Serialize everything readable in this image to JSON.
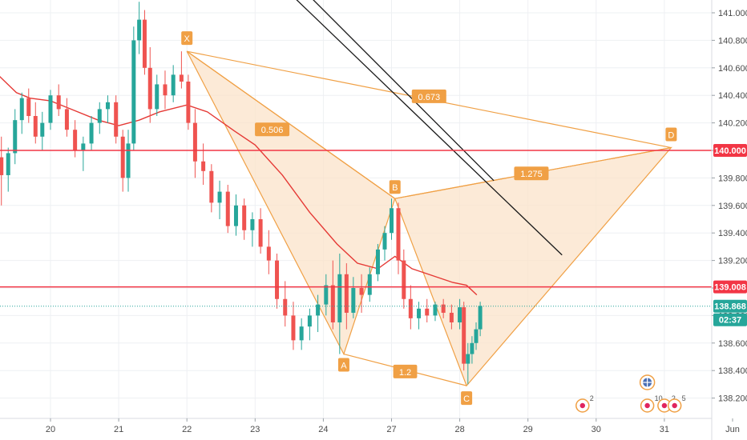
{
  "chart_data": {
    "type": "candlestick",
    "title": "",
    "x_ticks": [
      "20",
      "21",
      "22",
      "23",
      "24",
      "27",
      "28",
      "29",
      "30",
      "31",
      "Jun"
    ],
    "y_ticks": [
      "141.000",
      "140.800",
      "140.600",
      "140.400",
      "140.200",
      "140.000",
      "139.800",
      "139.600",
      "139.400",
      "139.200",
      "139.000",
      "138.800",
      "138.600",
      "138.400",
      "138.200"
    ],
    "ylim": [
      138.08,
      141.08
    ],
    "grid": true,
    "price_lines": [
      {
        "label": "140.000",
        "value": 140.0,
        "color": "#f23645"
      },
      {
        "label": "139.008",
        "value": 139.008,
        "color": "#f23645"
      }
    ],
    "last_price": {
      "label": "138.868",
      "value": 138.868,
      "color": "#26a69a"
    },
    "countdown": "02:37",
    "pattern": {
      "points": [
        {
          "label": "X",
          "session": 2.0,
          "value": 140.72
        },
        {
          "label": "A",
          "session": 4.3,
          "value": 138.52
        },
        {
          "label": "B",
          "session": 5.05,
          "value": 139.65
        },
        {
          "label": "C",
          "session": 6.1,
          "value": 138.29
        },
        {
          "label": "D",
          "session": 9.1,
          "value": 140.02
        }
      ],
      "ratios": [
        {
          "label": "0.506",
          "session": 3.25,
          "value": 140.15
        },
        {
          "label": "0.673",
          "session": 5.55,
          "value": 140.39
        },
        {
          "label": "1.275",
          "session": 7.05,
          "value": 139.83
        },
        {
          "label": "1.2",
          "session": 5.2,
          "value": 138.39
        }
      ],
      "fill_color": "#fbe3c9",
      "line_color": "#f0a045"
    },
    "trend_lines": [
      {
        "from": {
          "session": 3.45,
          "value": 141.17
        },
        "to": {
          "session": 7.5,
          "value": 139.24
        },
        "color": "#1a1a1a"
      },
      {
        "from": {
          "session": 3.7,
          "value": 141.17
        },
        "to": {
          "session": 6.5,
          "value": 139.78
        },
        "color": "#1a1a1a"
      }
    ],
    "moving_average": {
      "color": "#e53935",
      "points": [
        [
          -0.75,
          140.54
        ],
        [
          -0.5,
          140.42
        ],
        [
          -0.3,
          140.38
        ],
        [
          0.0,
          140.36
        ],
        [
          0.3,
          140.3
        ],
        [
          0.7,
          140.22
        ],
        [
          1.0,
          140.18
        ],
        [
          1.3,
          140.22
        ],
        [
          1.6,
          140.28
        ],
        [
          2.0,
          140.33
        ],
        [
          2.3,
          140.28
        ],
        [
          2.7,
          140.14
        ],
        [
          3.0,
          140.04
        ],
        [
          3.4,
          139.82
        ],
        [
          3.8,
          139.55
        ],
        [
          4.2,
          139.32
        ],
        [
          4.5,
          139.18
        ],
        [
          4.8,
          139.14
        ],
        [
          5.05,
          139.23
        ],
        [
          5.3,
          139.14
        ],
        [
          5.6,
          139.09
        ],
        [
          5.9,
          139.04
        ],
        [
          6.1,
          139.02
        ],
        [
          6.25,
          138.95
        ]
      ]
    },
    "series": [
      {
        "name": "",
        "ohlc": [
          [
            -0.72,
            139.95,
            140.1,
            139.6,
            139.82
          ],
          [
            -0.62,
            139.82,
            140.02,
            139.7,
            139.98
          ],
          [
            -0.52,
            139.98,
            140.3,
            139.9,
            140.22
          ],
          [
            -0.42,
            140.22,
            140.42,
            140.12,
            140.38
          ],
          [
            -0.32,
            140.38,
            140.45,
            140.2,
            140.25
          ],
          [
            -0.22,
            140.25,
            140.35,
            140.05,
            140.1
          ],
          [
            -0.12,
            140.1,
            140.28,
            140.0,
            140.2
          ],
          [
            0.0,
            140.2,
            140.44,
            140.15,
            140.4
          ],
          [
            0.12,
            140.4,
            140.48,
            140.25,
            140.3
          ],
          [
            0.24,
            140.3,
            140.38,
            140.1,
            140.15
          ],
          [
            0.36,
            140.15,
            140.22,
            139.95,
            140.0
          ],
          [
            0.48,
            140.0,
            140.1,
            139.85,
            140.05
          ],
          [
            0.6,
            140.05,
            140.25,
            140.0,
            140.2
          ],
          [
            0.72,
            140.2,
            140.35,
            140.12,
            140.3
          ],
          [
            0.84,
            140.3,
            140.4,
            140.2,
            140.35
          ],
          [
            0.96,
            140.35,
            140.4,
            140.05,
            140.1
          ],
          [
            1.06,
            140.1,
            140.15,
            139.7,
            139.8
          ],
          [
            1.14,
            139.8,
            140.15,
            139.7,
            140.05
          ],
          [
            1.22,
            140.05,
            140.9,
            140.0,
            140.8
          ],
          [
            1.3,
            140.8,
            141.08,
            140.7,
            140.95
          ],
          [
            1.38,
            140.95,
            141.02,
            140.55,
            140.6
          ],
          [
            1.46,
            140.6,
            140.75,
            140.2,
            140.3
          ],
          [
            1.56,
            140.3,
            140.55,
            140.25,
            140.48
          ],
          [
            1.68,
            140.48,
            140.58,
            140.3,
            140.4
          ],
          [
            1.8,
            140.4,
            140.62,
            140.35,
            140.55
          ],
          [
            1.92,
            140.55,
            140.72,
            140.45,
            140.5
          ],
          [
            2.02,
            140.5,
            140.55,
            140.15,
            140.2
          ],
          [
            2.12,
            140.2,
            140.3,
            139.8,
            139.92
          ],
          [
            2.24,
            139.92,
            140.05,
            139.75,
            139.85
          ],
          [
            2.36,
            139.85,
            139.9,
            139.55,
            139.62
          ],
          [
            2.48,
            139.62,
            139.78,
            139.5,
            139.7
          ],
          [
            2.6,
            139.7,
            139.75,
            139.4,
            139.45
          ],
          [
            2.72,
            139.45,
            139.68,
            139.38,
            139.6
          ],
          [
            2.84,
            139.6,
            139.65,
            139.35,
            139.42
          ],
          [
            2.96,
            139.42,
            139.55,
            139.3,
            139.5
          ],
          [
            3.08,
            139.5,
            139.58,
            139.25,
            139.3
          ],
          [
            3.2,
            139.3,
            139.42,
            139.1,
            139.2
          ],
          [
            3.32,
            139.2,
            139.25,
            138.85,
            138.92
          ],
          [
            3.44,
            138.92,
            139.05,
            138.72,
            138.8
          ],
          [
            3.56,
            138.8,
            138.9,
            138.55,
            138.62
          ],
          [
            3.68,
            138.62,
            138.78,
            138.55,
            138.72
          ],
          [
            3.8,
            138.72,
            138.85,
            138.62,
            138.8
          ],
          [
            3.92,
            138.8,
            138.95,
            138.68,
            138.88
          ],
          [
            4.04,
            138.88,
            139.1,
            138.8,
            139.02
          ],
          [
            4.14,
            139.02,
            139.2,
            138.7,
            138.75
          ],
          [
            4.24,
            138.75,
            139.25,
            138.52,
            139.1
          ],
          [
            4.34,
            139.1,
            139.18,
            138.7,
            138.82
          ],
          [
            4.44,
            138.82,
            139.08,
            138.78,
            139.0
          ],
          [
            4.56,
            139.0,
            139.1,
            138.82,
            138.95
          ],
          [
            4.68,
            138.95,
            139.15,
            138.9,
            139.1
          ],
          [
            4.8,
            139.1,
            139.32,
            139.05,
            139.28
          ],
          [
            4.9,
            139.28,
            139.45,
            139.2,
            139.4
          ],
          [
            5.0,
            139.4,
            139.65,
            139.35,
            139.58
          ],
          [
            5.1,
            139.58,
            139.62,
            139.1,
            139.2
          ],
          [
            5.18,
            139.2,
            139.28,
            138.85,
            138.92
          ],
          [
            5.28,
            138.92,
            139.02,
            138.7,
            138.78
          ],
          [
            5.4,
            138.78,
            138.9,
            138.7,
            138.85
          ],
          [
            5.52,
            138.85,
            138.92,
            138.75,
            138.8
          ],
          [
            5.64,
            138.8,
            138.9,
            138.76,
            138.88
          ],
          [
            5.76,
            138.88,
            138.92,
            138.78,
            138.82
          ],
          [
            5.88,
            138.82,
            138.88,
            138.7,
            138.75
          ],
          [
            6.0,
            138.75,
            138.92,
            138.7,
            138.86
          ],
          [
            6.06,
            138.86,
            138.9,
            138.4,
            138.45
          ],
          [
            6.12,
            138.45,
            138.6,
            138.3,
            138.52
          ],
          [
            6.18,
            138.52,
            138.65,
            138.45,
            138.6
          ],
          [
            6.24,
            138.6,
            138.75,
            138.55,
            138.7
          ],
          [
            6.3,
            138.7,
            138.9,
            138.65,
            138.87
          ]
        ]
      }
    ],
    "event_markers": [
      {
        "label": "2",
        "session": 7.8
      },
      {
        "label": "10",
        "session": 8.75
      },
      {
        "label": "2",
        "session": 9.0
      },
      {
        "label": "5",
        "session": 9.15
      },
      {
        "label": "",
        "session": 10.05
      }
    ]
  }
}
